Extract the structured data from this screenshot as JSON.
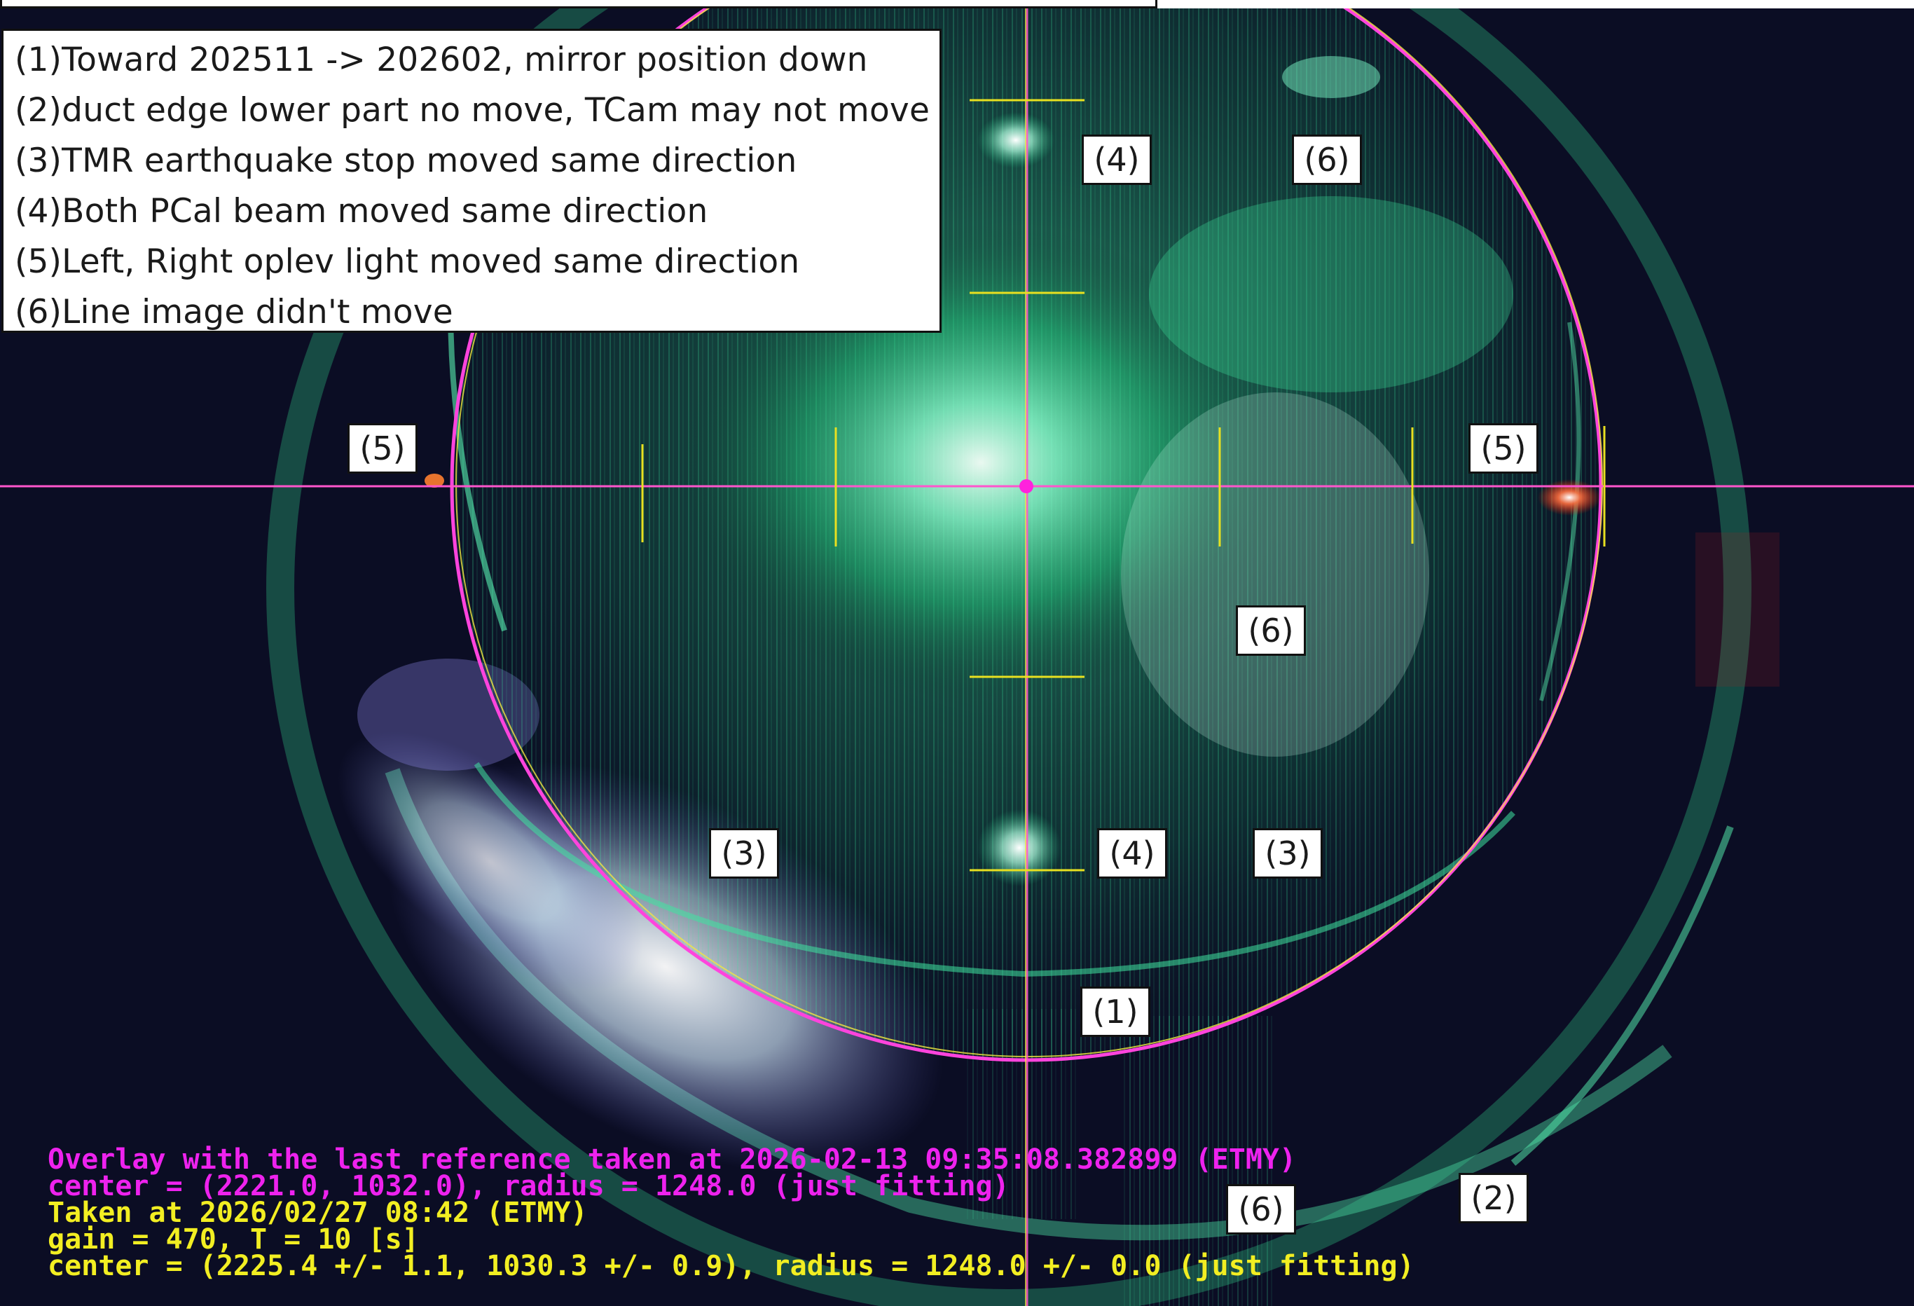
{
  "colors": {
    "background": "#0b0d24",
    "glow": "#3df0a0",
    "crosshair": "#ff33cc",
    "reticle": "#e8e020",
    "overlay_text": "#ee22ee",
    "info_text": "#f2ee22"
  },
  "notes": [
    "(1)Toward 202511 -> 202602, mirror position down",
    "(2)duct edge lower part no move, TCam may not move",
    "(3)TMR earthquake stop moved same direction",
    "(4)Both PCal beam moved same direction",
    "(5)Left, Right oplev light moved same direction",
    "(6)Line image didn't move"
  ],
  "tags": {
    "t1": "(1)",
    "t2": "(2)",
    "t3": "(3)",
    "t4": "(4)",
    "t5": "(5)",
    "t6": "(6)"
  },
  "overlay": {
    "reference_line": "Overlay with the last reference taken at 2026-02-13 09:35:08.382899 (ETMY)",
    "reference_fit": "center = (2221.0, 1032.0), radius = 1248.0  (just fitting)",
    "taken_at": "Taken at 2026/02/27 08:42 (ETMY)",
    "gain": "gain = 470, T = 10 [s]",
    "current_fit": "center = (2225.4 +/- 1.1, 1030.3 +/- 0.9), radius = 1248.0 +/- 0.0  (just fitting)"
  }
}
